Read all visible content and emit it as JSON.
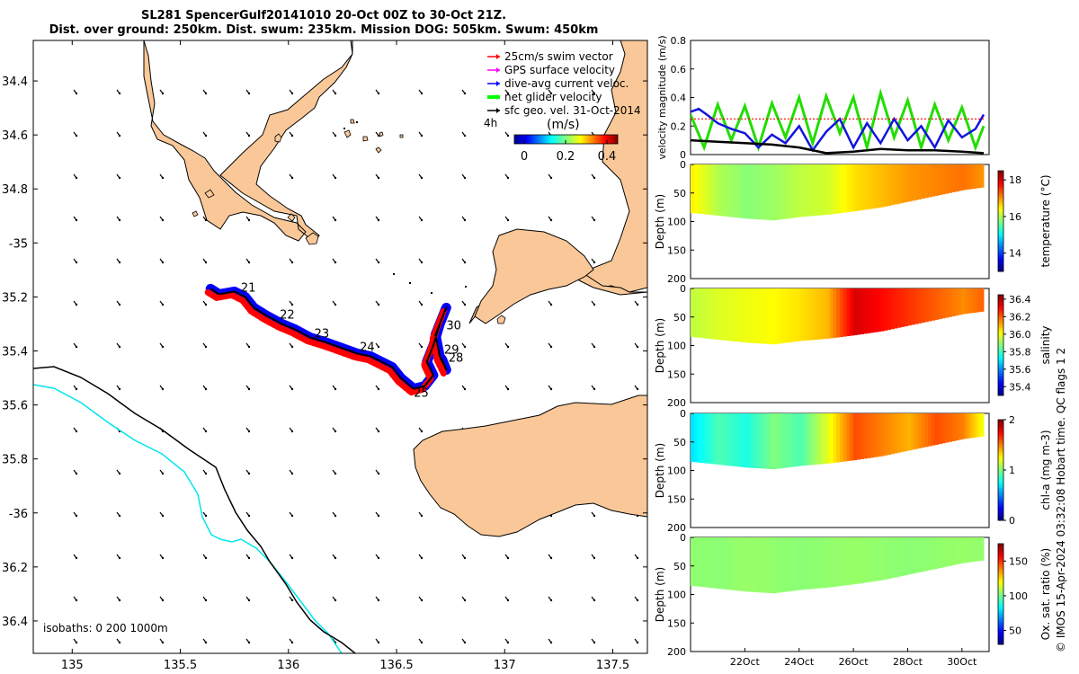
{
  "header": {
    "title_line1": "SL281 SpencerGulf20141010 20-Oct 00Z to 30-Oct 21Z.",
    "title_line2": "Dist. over ground: 250km. Dist. swum: 235km. Mission DOG: 505km. Swum: 450km"
  },
  "map": {
    "lat_ticks": [
      "34.4",
      "34.6",
      "34.8",
      "-35",
      "35.2",
      "35.4",
      "35.6",
      "35.8",
      "-36",
      "36.2",
      "36.4"
    ],
    "lon_ticks": [
      "135",
      "135.5",
      "136",
      "136.5",
      "137",
      "137.5"
    ],
    "lat_range": [
      34.25,
      36.52
    ],
    "lon_range": [
      134.82,
      137.66
    ],
    "legend": [
      {
        "label": "25cm/s swim vector",
        "color": "#ff0000"
      },
      {
        "label": "GPS surface velocity",
        "color": "#ff00ff"
      },
      {
        "label": "dive-avg current veloc.",
        "color": "#0000ff"
      },
      {
        "label": "net glider velocity",
        "color": "#00ff00"
      },
      {
        "label": "sfc geo. vel. 31-Oct-2014",
        "color": "#000000"
      }
    ],
    "interval_label": "4h",
    "colorbar": {
      "label": "(m/s)",
      "ticks": [
        "0",
        "0.2",
        "0.4"
      ]
    },
    "isobath_text": "isobaths: 0   200  1000m",
    "day_labels": [
      {
        "text": "21",
        "lat": 35.18,
        "lon": 135.78
      },
      {
        "text": "22",
        "lat": 35.28,
        "lon": 135.96
      },
      {
        "text": "23",
        "lat": 35.35,
        "lon": 136.12
      },
      {
        "text": "24",
        "lat": 35.4,
        "lon": 136.33
      },
      {
        "text": "25",
        "lat": 35.57,
        "lon": 136.58
      },
      {
        "text": "30",
        "lat": 35.32,
        "lon": 136.73
      },
      {
        "text": "29",
        "lat": 35.41,
        "lon": 136.72
      },
      {
        "text": "28",
        "lat": 35.44,
        "lon": 136.74
      }
    ],
    "track": [
      [
        35.17,
        135.64
      ],
      [
        35.19,
        135.68
      ],
      [
        35.18,
        135.75
      ],
      [
        35.2,
        135.8
      ],
      [
        35.24,
        135.84
      ],
      [
        35.27,
        135.9
      ],
      [
        35.3,
        135.97
      ],
      [
        35.32,
        136.03
      ],
      [
        35.35,
        136.1
      ],
      [
        35.37,
        136.18
      ],
      [
        35.39,
        136.25
      ],
      [
        35.41,
        136.32
      ],
      [
        35.42,
        136.38
      ],
      [
        35.44,
        136.43
      ],
      [
        35.46,
        136.48
      ],
      [
        35.5,
        136.52
      ],
      [
        35.54,
        136.58
      ],
      [
        35.53,
        136.63
      ],
      [
        35.49,
        136.67
      ],
      [
        35.44,
        136.64
      ],
      [
        35.38,
        136.67
      ],
      [
        35.3,
        136.7
      ],
      [
        35.24,
        136.73
      ],
      [
        35.34,
        136.68
      ],
      [
        35.42,
        136.7
      ],
      [
        35.47,
        136.73
      ],
      [
        35.43,
        136.71
      ]
    ]
  },
  "chart_data": [
    {
      "type": "line",
      "title": "velocity magnitude",
      "ylabel": "velocity magnitude (m/s)",
      "ylim": [
        0,
        0.8
      ],
      "yticks": [
        "0",
        "0.2",
        "0.4",
        "0.6",
        "0.8"
      ],
      "x_range_days": [
        20,
        31
      ],
      "series": [
        {
          "name": "net glider velocity",
          "color": "#22dd00",
          "days": [
            20,
            20.5,
            21,
            21.5,
            22,
            22.5,
            23,
            23.5,
            24,
            24.5,
            25,
            25.5,
            26,
            26.5,
            27,
            27.5,
            28,
            28.5,
            29,
            29.5,
            30,
            30.5,
            30.8
          ],
          "values": [
            0.28,
            0.05,
            0.35,
            0.1,
            0.34,
            0.05,
            0.36,
            0.12,
            0.4,
            0.08,
            0.41,
            0.15,
            0.4,
            0.05,
            0.43,
            0.12,
            0.38,
            0.05,
            0.35,
            0.1,
            0.33,
            0.05,
            0.2
          ]
        },
        {
          "name": "dive-avg current veloc.",
          "color": "#1414dd",
          "days": [
            20,
            20.3,
            20.6,
            21,
            21.5,
            22,
            22.5,
            23,
            23.5,
            24,
            24.5,
            25,
            25.5,
            26,
            26.5,
            27,
            27.5,
            28,
            28.5,
            29,
            29.5,
            30,
            30.5,
            30.8
          ],
          "values": [
            0.3,
            0.32,
            0.28,
            0.22,
            0.18,
            0.15,
            0.05,
            0.14,
            0.08,
            0.2,
            0.03,
            0.16,
            0.25,
            0.05,
            0.22,
            0.08,
            0.25,
            0.1,
            0.2,
            0.05,
            0.24,
            0.12,
            0.18,
            0.28
          ]
        },
        {
          "name": "sfc geo. vel.",
          "color": "#000000",
          "days": [
            20,
            21,
            22,
            23,
            24,
            25,
            26,
            27,
            28,
            29,
            30,
            30.8
          ],
          "values": [
            0.1,
            0.09,
            0.08,
            0.07,
            0.05,
            0.01,
            0.02,
            0.04,
            0.03,
            0.03,
            0.02,
            0.01
          ]
        },
        {
          "name": "25cm/s swim vector",
          "color": "#ff0000",
          "days": [
            20,
            30.8
          ],
          "values": [
            0.25,
            0.25
          ]
        }
      ]
    },
    {
      "type": "heatmap",
      "variable": "temperature",
      "ylabel": "Depth (m)",
      "colorbar_label": "temperature (°C)",
      "clim": [
        13,
        18.5
      ],
      "colorbar_ticks": [
        14,
        16,
        18
      ],
      "ylim": [
        0,
        200
      ],
      "yticks": [
        0,
        50,
        100,
        150,
        200
      ],
      "days": [
        20,
        21,
        22,
        23,
        24,
        25,
        26,
        27,
        28,
        29,
        30,
        30.8
      ],
      "bottom_depth": [
        85,
        90,
        95,
        98,
        92,
        88,
        82,
        75,
        65,
        55,
        45,
        40
      ],
      "values": [
        16.5,
        16.0,
        15.8,
        15.9,
        16.1,
        16.2,
        16.6,
        16.8,
        17.0,
        17.1,
        17.2,
        17.0
      ]
    },
    {
      "type": "heatmap",
      "variable": "salinity",
      "ylabel": "Depth (m)",
      "colorbar_label": "salinity",
      "clim": [
        35.3,
        36.45
      ],
      "colorbar_ticks": [
        35.4,
        35.6,
        35.8,
        36.0,
        36.2,
        36.4
      ],
      "ylim": [
        0,
        200
      ],
      "yticks": [
        0,
        50,
        100,
        150,
        200
      ],
      "days": [
        20,
        21,
        22,
        23,
        24,
        25,
        26,
        27,
        28,
        29,
        30,
        30.8
      ],
      "bottom_depth": [
        85,
        90,
        95,
        98,
        92,
        88,
        82,
        75,
        65,
        55,
        45,
        40
      ],
      "values": [
        35.95,
        35.98,
        36.0,
        36.02,
        36.05,
        36.1,
        36.35,
        36.3,
        36.25,
        36.2,
        36.15,
        36.2
      ]
    },
    {
      "type": "heatmap",
      "variable": "chl-a",
      "ylabel": "Depth (m)",
      "colorbar_label": "chl-a (mg m-3)",
      "clim": [
        0,
        2
      ],
      "colorbar_ticks": [
        0,
        1,
        2
      ],
      "ylim": [
        0,
        200
      ],
      "yticks": [
        0,
        50,
        100,
        150,
        200
      ],
      "days": [
        20,
        21,
        22,
        23,
        24,
        25,
        26,
        27,
        28,
        29,
        30,
        30.8
      ],
      "bottom_depth": [
        85,
        90,
        95,
        98,
        92,
        88,
        82,
        75,
        65,
        55,
        45,
        40
      ],
      "values": [
        0.7,
        0.9,
        0.8,
        1.0,
        0.9,
        1.2,
        1.6,
        1.5,
        1.4,
        1.6,
        1.5,
        1.2
      ]
    },
    {
      "type": "heatmap",
      "variable": "oxygen saturation",
      "ylabel": "Depth (m)",
      "colorbar_label": "Ox. sat. ratio (%)",
      "clim": [
        30,
        175
      ],
      "colorbar_ticks": [
        50,
        100,
        150
      ],
      "ylim": [
        0,
        200
      ],
      "yticks": [
        0,
        50,
        100,
        150,
        200
      ],
      "x_ticks": [
        "22Oct",
        "24Oct",
        "26Oct",
        "28Oct",
        "30Oct"
      ],
      "days": [
        20,
        21,
        22,
        23,
        24,
        25,
        26,
        27,
        28,
        29,
        30,
        30.8
      ],
      "bottom_depth": [
        85,
        90,
        95,
        98,
        92,
        88,
        82,
        75,
        65,
        55,
        45,
        40
      ],
      "values": [
        105,
        104,
        106,
        105,
        104,
        105,
        106,
        105,
        104,
        105,
        106,
        105
      ]
    }
  ],
  "side_note": "© IMOS 15-Apr-2024 03:32:08 Hobart time. QC flags 1  2",
  "colors": {
    "land": "#fac898",
    "track_red": "#ff0000",
    "track_blue": "#0000ff",
    "water_cyan": "#00e5ee"
  }
}
